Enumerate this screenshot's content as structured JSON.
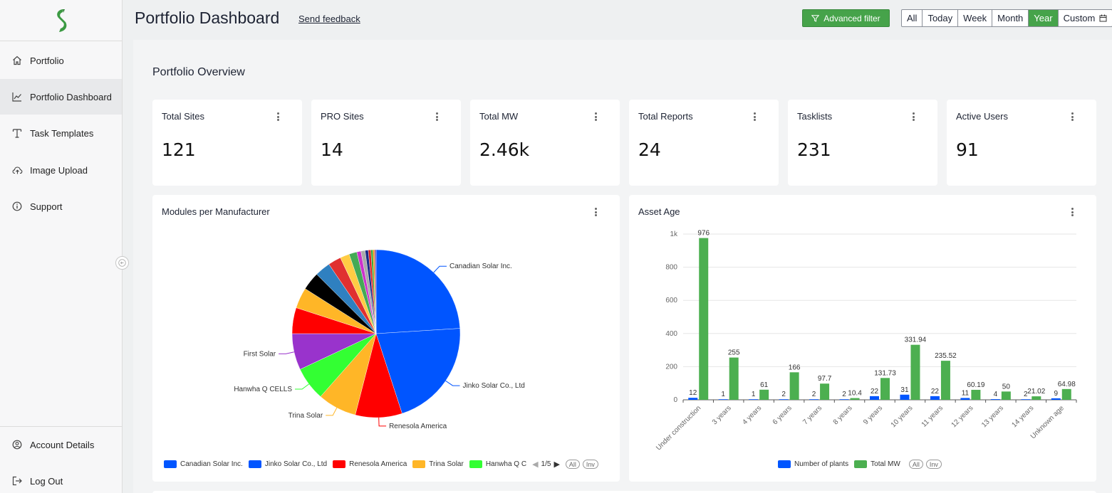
{
  "sidebar": {
    "items": [
      {
        "label": "Portfolio",
        "icon": "home-icon"
      },
      {
        "label": "Portfolio Dashboard",
        "icon": "chart-icon"
      },
      {
        "label": "Task Templates",
        "icon": "template-icon"
      },
      {
        "label": "Image Upload",
        "icon": "cloud-upload-icon"
      },
      {
        "label": "Support",
        "icon": "info-icon"
      }
    ],
    "bottom_items": [
      {
        "label": "Account Details",
        "icon": "user-icon"
      },
      {
        "label": "Log Out",
        "icon": "logout-icon"
      }
    ]
  },
  "header": {
    "title": "Portfolio Dashboard",
    "feedback_link": "Send feedback",
    "advanced_filter": "Advanced filter",
    "ranges": [
      "All",
      "Today",
      "Week",
      "Month",
      "Year",
      "Custom"
    ],
    "selected_range": "Year"
  },
  "overview": {
    "title": "Portfolio Overview",
    "stats": [
      {
        "label": "Total Sites",
        "value": "121"
      },
      {
        "label": "PRO Sites",
        "value": "14"
      },
      {
        "label": "Total MW",
        "value": "2.46k"
      },
      {
        "label": "Total Reports",
        "value": "24"
      },
      {
        "label": "Tasklists",
        "value": "231"
      },
      {
        "label": "Active Users",
        "value": "91"
      }
    ]
  },
  "modules_chart": {
    "title": "Modules per Manufacturer",
    "legend_page": "1/5",
    "legend_all": "All",
    "legend_inv": "Inv"
  },
  "asset_age_chart": {
    "title": "Asset Age",
    "legend_all": "All",
    "legend_inv": "Inv"
  },
  "colors": {
    "accent": "#46a34a",
    "blue": "#0055ff",
    "green": "#4caf50"
  },
  "chart_data": [
    {
      "type": "pie",
      "title": "Modules per Manufacturer",
      "labeled_slices": [
        "Canadian Solar Inc.",
        "Jinko Solar Co., Ltd",
        "Renesola America",
        "Trina Solar",
        "Hanwha Q CELLS",
        "First Solar"
      ],
      "slices": [
        {
          "name": "Canadian Solar Inc.",
          "value": 24.0,
          "color": "#0055ff"
        },
        {
          "name": "Jinko Solar Co., Ltd",
          "value": 21.0,
          "color": "#0055ff"
        },
        {
          "name": "Renesola America",
          "value": 9.0,
          "color": "#ff0000"
        },
        {
          "name": "Trina Solar",
          "value": 7.5,
          "color": "#ffb627"
        },
        {
          "name": "Hanwha Q CELLS",
          "value": 6.5,
          "color": "#33ff33"
        },
        {
          "name": "First Solar",
          "value": 7.0,
          "color": "#9933cc"
        },
        {
          "name": "",
          "value": 5.0,
          "color": "#ff0000"
        },
        {
          "name": "",
          "value": 4.0,
          "color": "#ffb627"
        },
        {
          "name": "",
          "value": 3.5,
          "color": "#000000"
        },
        {
          "name": "",
          "value": 3.0,
          "color": "#2f80c0"
        },
        {
          "name": "",
          "value": 2.5,
          "color": "#e03030"
        },
        {
          "name": "",
          "value": 1.8,
          "color": "#ffcc44"
        },
        {
          "name": "",
          "value": 1.5,
          "color": "#44aa55"
        },
        {
          "name": "",
          "value": 0.8,
          "color": "#cc33cc"
        },
        {
          "name": "",
          "value": 0.8,
          "color": "#aaaaaa"
        },
        {
          "name": "",
          "value": 0.6,
          "color": "#1a2a88"
        },
        {
          "name": "",
          "value": 0.5,
          "color": "#dd2222"
        },
        {
          "name": "",
          "value": 0.4,
          "color": "#33aa33"
        },
        {
          "name": "",
          "value": 0.3,
          "color": "#ff8800"
        },
        {
          "name": "",
          "value": 0.3,
          "color": "#8855aa"
        }
      ],
      "legend": [
        {
          "name": "Canadian Solar Inc.",
          "color": "#0055ff"
        },
        {
          "name": "Jinko Solar Co., Ltd",
          "color": "#0055ff"
        },
        {
          "name": "Renesola America",
          "color": "#ff0000"
        },
        {
          "name": "Trina Solar",
          "color": "#ffb627"
        },
        {
          "name": "Hanwha Q C",
          "color": "#33ff33"
        }
      ]
    },
    {
      "type": "bar",
      "title": "Asset Age",
      "categories": [
        "Under construction",
        "3 years",
        "4 years",
        "6 years",
        "7 years",
        "8 years",
        "9 years",
        "10 years",
        "11 years",
        "12 years",
        "13 years",
        "14 years",
        "Unknown age"
      ],
      "series": [
        {
          "name": "Number of plants",
          "color": "#0055ff",
          "values": [
            12,
            1,
            1,
            2,
            2,
            2,
            22,
            31,
            22,
            11,
            4,
            2,
            9
          ]
        },
        {
          "name": "Total MW",
          "color": "#4caf50",
          "values": [
            976,
            255,
            61,
            166,
            97.7,
            10.4,
            131.73,
            331.94,
            235.52,
            60.19,
            50,
            21.02,
            64.98
          ]
        }
      ],
      "ylim": [
        0,
        1000
      ],
      "yticks": [
        0,
        200,
        400,
        600,
        800,
        "1k"
      ],
      "grid": true,
      "legend_position": "bottom"
    }
  ]
}
